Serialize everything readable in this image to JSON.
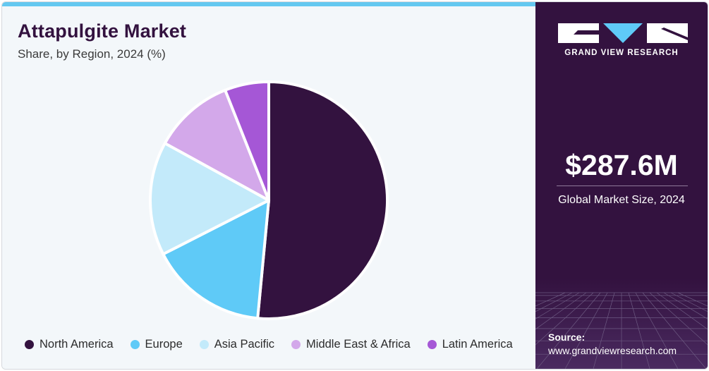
{
  "title": "Attapulgite Market",
  "subtitle": "Share, by Region, 2024 (%)",
  "brand": {
    "logo_text": "GRAND VIEW RESEARCH",
    "market_size": "$287.6M",
    "market_size_label": "Global Market Size, 2024",
    "source_label": "Source:",
    "source_url": "www.grandviewresearch.com"
  },
  "colors": {
    "accent_top": "#64c8f0",
    "panel_dark": "#33123f"
  },
  "chart_data": {
    "type": "pie",
    "title": "Attapulgite Market",
    "subtitle": "Share, by Region, 2024 (%)",
    "legend_position": "bottom",
    "slices": [
      {
        "label": "North America",
        "value": 51.5,
        "color": "#33123f"
      },
      {
        "label": "Europe",
        "value": 16.0,
        "color": "#5fcaf7"
      },
      {
        "label": "Asia Pacific",
        "value": 15.5,
        "color": "#c3eafa"
      },
      {
        "label": "Middle East & Africa",
        "value": 11.0,
        "color": "#d3a8ea"
      },
      {
        "label": "Latin America",
        "value": 6.0,
        "color": "#a557d6"
      }
    ]
  }
}
